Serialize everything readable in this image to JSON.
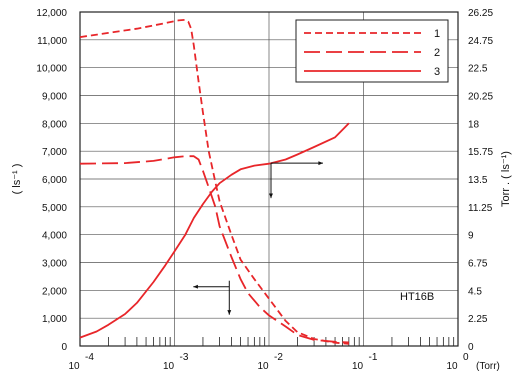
{
  "chart_data": {
    "type": "line",
    "annotation": "HT16B",
    "xlabel_unit": "(Torr)",
    "ylabel_left": "( ls⁻¹ )",
    "ylabel_right": "Torr . ( ls⁻¹)",
    "x_scale": "log",
    "xlim": [
      0.0001,
      1
    ],
    "ylim_left": [
      0,
      12000
    ],
    "ylim_right": [
      0,
      26.25
    ],
    "x_tick_labels": [
      {
        "base": "10",
        "exp": "-4"
      },
      {
        "base": "10",
        "exp": "-3"
      },
      {
        "base": "10",
        "exp": "-2"
      },
      {
        "base": "10",
        "exp": "-1"
      },
      {
        "base": "10",
        "exp": "0"
      }
    ],
    "y_left_tick_labels": [
      "0",
      "1,000",
      "2,000",
      "3,000",
      "4,000",
      "5,000",
      "6,000",
      "7,000",
      "8,000",
      "9,000",
      "10,000",
      "11,000",
      "12,000"
    ],
    "y_right_tick_labels": [
      "0",
      "2.25",
      "4.5",
      "6.75",
      "9",
      "11.25",
      "13.5",
      "15.75",
      "18",
      "20.25",
      "22.5",
      "24.75",
      "26.25"
    ],
    "grid": true,
    "legend_position": "top-right",
    "colors": {
      "series": "#e8262a",
      "grid": "#555555",
      "frame": "#222222"
    },
    "series": [
      {
        "name": "1",
        "dash": "short",
        "axis": "left",
        "points": [
          [
            0.0001,
            11100
          ],
          [
            0.0002,
            11250
          ],
          [
            0.0004,
            11400
          ],
          [
            0.0008,
            11600
          ],
          [
            0.0011,
            11700
          ],
          [
            0.0013,
            11720
          ],
          [
            0.0014,
            11650
          ],
          [
            0.0015,
            11400
          ],
          [
            0.0016,
            10800
          ],
          [
            0.0018,
            9500
          ],
          [
            0.002,
            8400
          ],
          [
            0.0023,
            7000
          ],
          [
            0.0027,
            5900
          ],
          [
            0.003,
            5200
          ],
          [
            0.004,
            4000
          ],
          [
            0.005,
            3100
          ],
          [
            0.007,
            2400
          ],
          [
            0.01,
            1700
          ],
          [
            0.015,
            900
          ],
          [
            0.02,
            500
          ],
          [
            0.03,
            250
          ],
          [
            0.05,
            120
          ],
          [
            0.07,
            80
          ]
        ]
      },
      {
        "name": "2",
        "dash": "long",
        "axis": "left",
        "points": [
          [
            0.0001,
            6550
          ],
          [
            0.0003,
            6570
          ],
          [
            0.0006,
            6650
          ],
          [
            0.001,
            6780
          ],
          [
            0.0013,
            6820
          ],
          [
            0.0016,
            6820
          ],
          [
            0.0018,
            6700
          ],
          [
            0.002,
            6300
          ],
          [
            0.0023,
            5700
          ],
          [
            0.0027,
            5000
          ],
          [
            0.003,
            4300
          ],
          [
            0.004,
            3200
          ],
          [
            0.005,
            2400
          ],
          [
            0.006,
            1900
          ],
          [
            0.008,
            1400
          ],
          [
            0.01,
            1100
          ],
          [
            0.015,
            700
          ],
          [
            0.02,
            400
          ],
          [
            0.03,
            220
          ],
          [
            0.05,
            150
          ],
          [
            0.07,
            130
          ]
        ]
      },
      {
        "name": "3",
        "dash": "solid",
        "axis": "left",
        "points": [
          [
            0.0001,
            300
          ],
          [
            0.00015,
            520
          ],
          [
            0.0002,
            760
          ],
          [
            0.0003,
            1150
          ],
          [
            0.0004,
            1550
          ],
          [
            0.0006,
            2300
          ],
          [
            0.0008,
            2900
          ],
          [
            0.001,
            3400
          ],
          [
            0.0013,
            4000
          ],
          [
            0.0016,
            4600
          ],
          [
            0.002,
            5100
          ],
          [
            0.0025,
            5550
          ],
          [
            0.003,
            5850
          ],
          [
            0.004,
            6150
          ],
          [
            0.005,
            6350
          ],
          [
            0.007,
            6480
          ],
          [
            0.01,
            6550
          ],
          [
            0.015,
            6700
          ],
          [
            0.02,
            6880
          ],
          [
            0.03,
            7150
          ],
          [
            0.05,
            7500
          ],
          [
            0.07,
            8000
          ]
        ]
      }
    ]
  }
}
